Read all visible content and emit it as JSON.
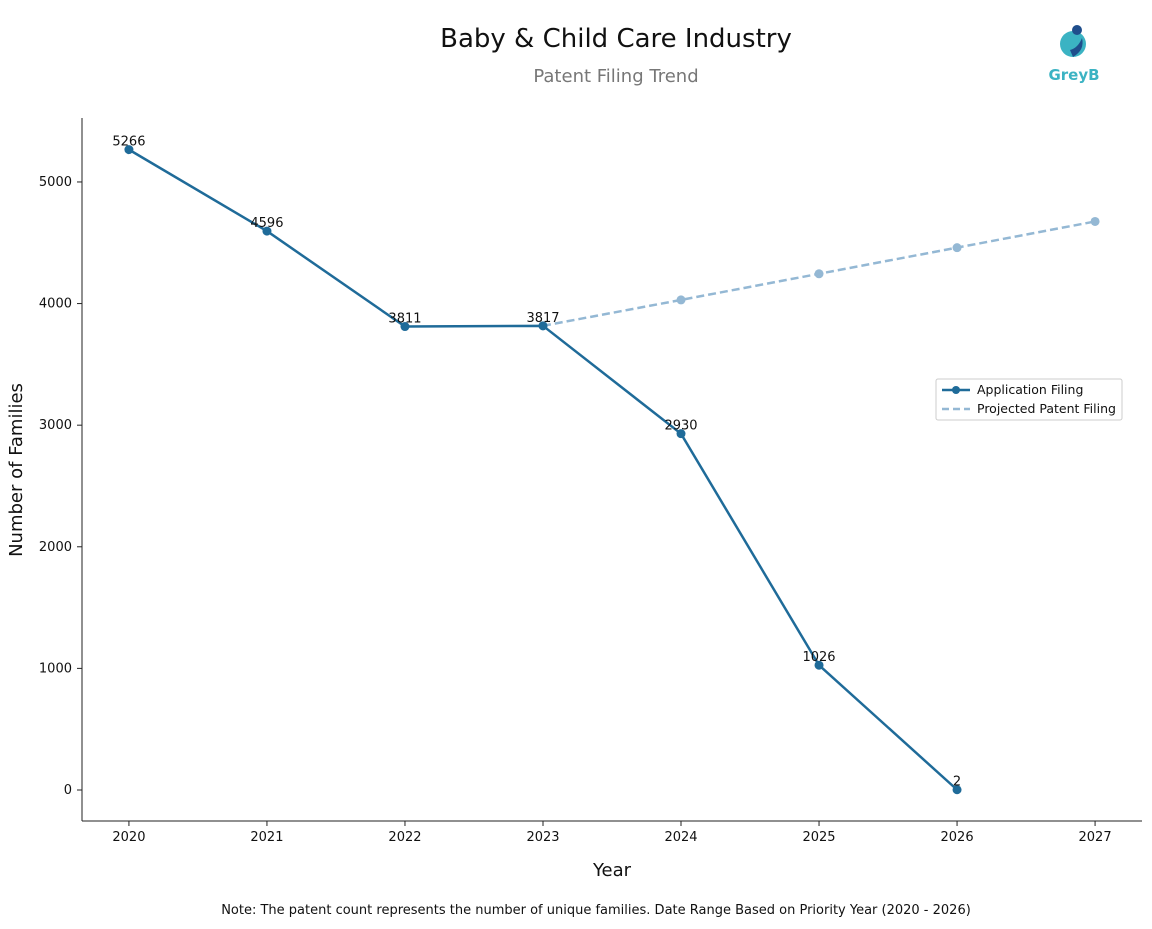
{
  "chart_data": {
    "type": "line",
    "title": "Baby & Child Care Industry",
    "subtitle": "Patent Filing Trend",
    "logo": "GreyB",
    "x_label": "Year",
    "y_label": "Number of Families",
    "note": "Note: The patent count represents the number of unique families. Date Range Based on Priority Year (2020 - 2026)",
    "x": [
      2020,
      2021,
      2022,
      2023,
      2024,
      2025,
      2026,
      2027
    ],
    "series": [
      {
        "name": "Application Filing",
        "color": "#1f6b99",
        "dashed": false,
        "data_labels": true,
        "values": [
          5266,
          4596,
          3811,
          3817,
          2930,
          1026,
          2,
          null
        ]
      },
      {
        "name": "Projected Patent Filing",
        "color": "#94b8d4",
        "dashed": true,
        "data_labels": false,
        "values": [
          null,
          null,
          null,
          3817,
          4030,
          4245,
          4460,
          4675
        ]
      }
    ],
    "xlim": [
      2019.66,
      2027.34
    ],
    "ylim": [
      -255,
      5526
    ],
    "xticks": [
      2020,
      2021,
      2022,
      2023,
      2024,
      2025,
      2026,
      2027
    ],
    "yticks": [
      0,
      1000,
      2000,
      3000,
      4000,
      5000
    ],
    "grid": false,
    "legend": "right"
  }
}
